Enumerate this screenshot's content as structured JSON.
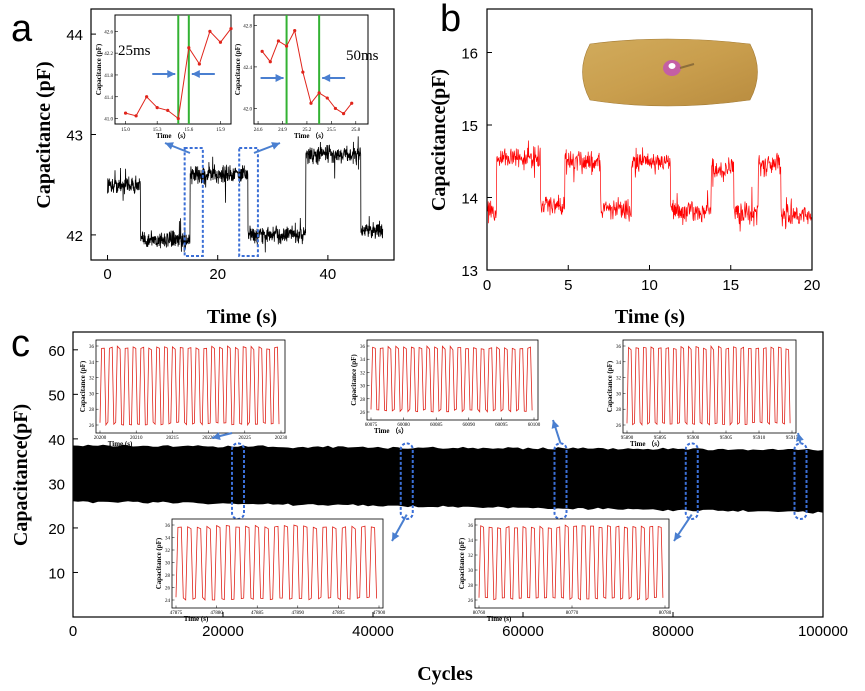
{
  "chart_data": [
    {
      "panel": "a",
      "type": "line",
      "xlabel": "Time (s)",
      "ylabel": "Capacitance  (pF)",
      "xlim": [
        -3,
        52
      ],
      "ylim": [
        41.75,
        44.25
      ],
      "xticks": [
        0,
        20,
        40
      ],
      "yticks": [
        42,
        43,
        44
      ],
      "color": "#000000",
      "segments": [
        {
          "x": [
            0,
            6
          ],
          "y": 42.5
        },
        {
          "x": [
            6,
            15
          ],
          "y": 41.95
        },
        {
          "x": [
            15,
            25.5
          ],
          "y": 42.6
        },
        {
          "x": [
            25.5,
            36
          ],
          "y": 42.0
        },
        {
          "x": [
            36,
            46
          ],
          "y": 42.8
        },
        {
          "x": [
            46,
            50
          ],
          "y": 42.05
        }
      ],
      "noise": 0.12,
      "insets": [
        {
          "xlabel": "Time （s）",
          "ylabel": "Capacitance  (pF)",
          "annotation": "25ms",
          "xlim": [
            14.9,
            16.0
          ],
          "ylim": [
            40.9,
            42.9
          ],
          "xticks": [
            15.0,
            15.3,
            15.6,
            15.9
          ],
          "xtick_labels": [
            "15.0",
            "15.3",
            "15.6",
            "15.9"
          ],
          "yticks": [
            41.0,
            41.4,
            41.8,
            42.2,
            42.6
          ],
          "ytick_labels": [
            "41.0",
            "41.4",
            "41.8",
            "42.2",
            "42.6"
          ],
          "x": [
            15.0,
            15.1,
            15.2,
            15.3,
            15.4,
            15.5,
            15.6,
            15.7,
            15.8,
            15.9,
            16.0
          ],
          "y": [
            41.1,
            41.05,
            41.4,
            41.2,
            41.15,
            41.0,
            42.3,
            42.0,
            42.6,
            42.4,
            42.65
          ],
          "markers": [
            15.5,
            15.6
          ],
          "color": "#e0241b"
        },
        {
          "xlabel": "Time （s）",
          "ylabel": "Capacitance  (pF)",
          "annotation": "50ms",
          "xlim": [
            24.55,
            25.95
          ],
          "ylim": [
            41.85,
            42.9
          ],
          "xticks": [
            24.6,
            24.9,
            25.2,
            25.5,
            25.8
          ],
          "xtick_labels": [
            "24.6",
            "24.9",
            "25.2",
            "25.5",
            "25.8"
          ],
          "yticks": [
            42.0,
            42.4,
            42.8
          ],
          "ytick_labels": [
            "42.0",
            "42.4",
            "42.8"
          ],
          "x": [
            24.65,
            24.75,
            24.85,
            24.95,
            25.05,
            25.15,
            25.25,
            25.35,
            25.45,
            25.55,
            25.65,
            25.75
          ],
          "y": [
            42.55,
            42.45,
            42.65,
            42.6,
            42.75,
            42.35,
            42.05,
            42.15,
            42.1,
            42.0,
            41.95,
            42.05
          ],
          "markers": [
            24.95,
            25.35
          ],
          "color": "#e0241b"
        }
      ]
    },
    {
      "panel": "b",
      "type": "line",
      "xlabel": "Time (s)",
      "ylabel": "Capacitance(pF)",
      "xlim": [
        0,
        20
      ],
      "ylim": [
        13,
        16.6
      ],
      "xticks": [
        0,
        5,
        10,
        15,
        20
      ],
      "yticks": [
        13,
        14,
        15,
        16
      ],
      "color": "#ff0000",
      "segments": [
        {
          "x": [
            0,
            0.6
          ],
          "y": 13.8
        },
        {
          "x": [
            0.6,
            3.3
          ],
          "y": 14.55
        },
        {
          "x": [
            3.3,
            4.8
          ],
          "y": 13.9
        },
        {
          "x": [
            4.8,
            7.0
          ],
          "y": 14.5
        },
        {
          "x": [
            7.0,
            8.9
          ],
          "y": 13.85
        },
        {
          "x": [
            8.9,
            11.3
          ],
          "y": 14.5
        },
        {
          "x": [
            11.3,
            13.8
          ],
          "y": 13.8
        },
        {
          "x": [
            13.8,
            15.2
          ],
          "y": 14.4
        },
        {
          "x": [
            15.2,
            16.7
          ],
          "y": 13.8
        },
        {
          "x": [
            16.7,
            18.1
          ],
          "y": 14.45
        },
        {
          "x": [
            18.1,
            20
          ],
          "y": 13.75
        }
      ],
      "noise": 0.22
    },
    {
      "panel": "c",
      "type": "area",
      "xlabel": "Cycles",
      "ylabel": "Capacitance(pF)",
      "xlim": [
        0,
        100000
      ],
      "ylim": [
        0,
        64
      ],
      "xticks": [
        0,
        20000,
        40000,
        60000,
        80000,
        100000
      ],
      "yticks": [
        10,
        20,
        30,
        40,
        50,
        60
      ],
      "band": {
        "x": [
          0,
          100000
        ],
        "min": [
          26,
          23.5
        ],
        "max": [
          38.5,
          37.5
        ]
      },
      "color": "#000000",
      "insets": [
        {
          "xlabel": "Time (s)",
          "ylabel": "Capacitance  (pF)",
          "xticks": [
            "20200",
            "20210",
            "20215",
            "20220",
            "20225",
            "20230"
          ],
          "yticks": [
            "26",
            "28",
            "30",
            "32",
            "34",
            "36"
          ],
          "cycles": 23,
          "color": "#e0241b"
        },
        {
          "xlabel": "Time （s）",
          "ylabel": "Capacitance  (pF)",
          "xticks": [
            "60075",
            "60080",
            "60085",
            "60090",
            "60095",
            "60100"
          ],
          "yticks": [
            "26",
            "28",
            "30",
            "32",
            "34",
            "36"
          ],
          "cycles": 21,
          "color": "#e0241b"
        },
        {
          "xlabel": "Time （s）",
          "ylabel": "Capacitance  (pF)",
          "xticks": [
            "95890",
            "95895",
            "95900",
            "95905",
            "95910",
            "95915"
          ],
          "yticks": [
            "26",
            "28",
            "30",
            "32",
            "34",
            "36"
          ],
          "cycles": 22,
          "color": "#e0241b"
        },
        {
          "xlabel": "Time (s)",
          "ylabel": "Capacitance  (pF)",
          "xticks": [
            "47875",
            "47880",
            "47885",
            "47890",
            "47895",
            "47900"
          ],
          "yticks": [
            "24",
            "26",
            "28",
            "30",
            "32",
            "34",
            "36"
          ],
          "cycles": 21,
          "color": "#e0241b"
        },
        {
          "xlabel": "Time (s)",
          "ylabel": "Capacitance  (pF)",
          "xticks": [
            "80760",
            "80770",
            "80780"
          ],
          "yticks": [
            "26",
            "28",
            "30",
            "32",
            "34",
            "36"
          ],
          "cycles": 22,
          "color": "#e0241b"
        }
      ],
      "highlights": [
        22000,
        44500,
        65000,
        82500,
        97000
      ]
    }
  ],
  "labels": {
    "a": "a",
    "b": "b",
    "c": "c"
  },
  "colors": {
    "highlight": "#3b6fd6",
    "arrow": "#4a7fd0",
    "marker": "#33b233"
  }
}
